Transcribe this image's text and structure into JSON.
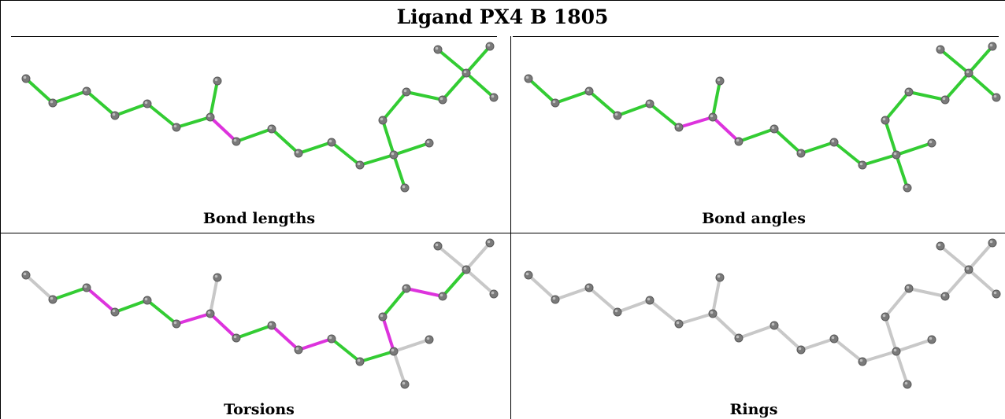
{
  "title": "Ligand PX4 B 1805",
  "panels": [
    {
      "caption": "Bond lengths"
    },
    {
      "caption": "Bond angles"
    },
    {
      "caption": "Torsions"
    },
    {
      "caption": "Rings"
    }
  ],
  "colors": {
    "good": "#33cc33",
    "outlier": "#dd33dd",
    "none": "#c8c8c8",
    "atom": "#7a7a7a"
  },
  "atom_count": 24,
  "bond_count": 23,
  "bond_status": {
    "bond_lengths": [
      "good",
      "good",
      "good",
      "good",
      "good",
      "good",
      "good",
      "outlier",
      "good",
      "good",
      "good",
      "good",
      "good",
      "good",
      "good",
      "good",
      "good",
      "good",
      "good",
      "good",
      "good",
      "good",
      "good"
    ],
    "bond_angles": [
      "good",
      "good",
      "good",
      "good",
      "good",
      "outlier",
      "good",
      "outlier",
      "good",
      "good",
      "good",
      "good",
      "good",
      "good",
      "good",
      "good",
      "good",
      "good",
      "good",
      "good",
      "good",
      "good",
      "good"
    ],
    "torsions": [
      "none",
      "good",
      "outlier",
      "good",
      "good",
      "outlier",
      "none",
      "outlier",
      "good",
      "outlier",
      "outlier",
      "good",
      "good",
      "none",
      "none",
      "outlier",
      "good",
      "outlier",
      "good",
      "none",
      "none",
      "none",
      "none"
    ],
    "rings": [
      "none",
      "none",
      "none",
      "none",
      "none",
      "none",
      "none",
      "none",
      "none",
      "none",
      "none",
      "none",
      "none",
      "none",
      "none",
      "none",
      "none",
      "none",
      "none",
      "none",
      "none",
      "none",
      "none"
    ]
  }
}
